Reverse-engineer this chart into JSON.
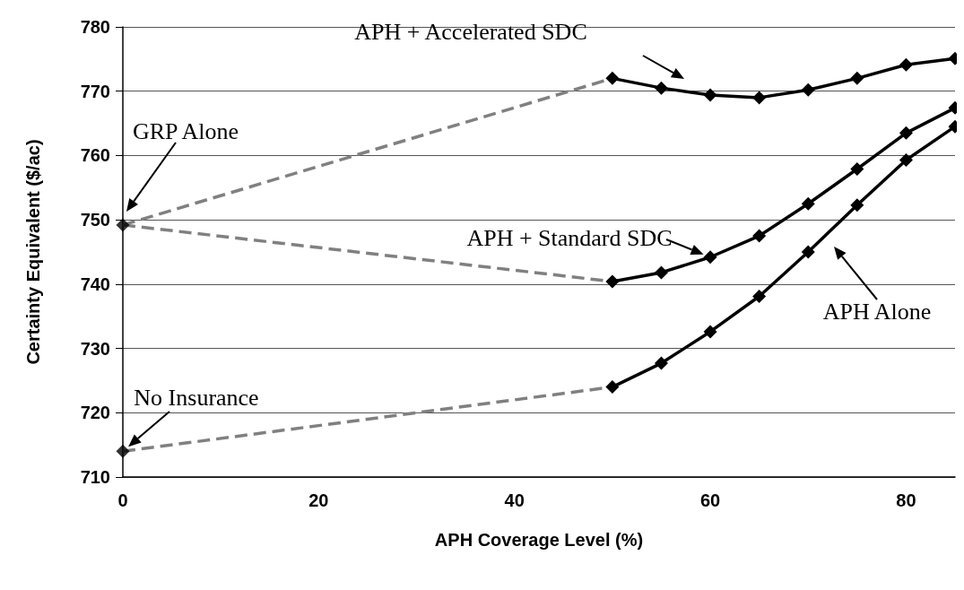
{
  "chart_data": {
    "type": "line",
    "xlabel": "APH Coverage Level (%)",
    "ylabel": "Certainty Equivalent ($/ac)",
    "xlim": [
      0,
      85
    ],
    "xticks": [
      0,
      20,
      40,
      60,
      80
    ],
    "ylim": [
      710,
      780
    ],
    "yticks": [
      710,
      720,
      730,
      740,
      750,
      760,
      770,
      780
    ],
    "grid": "y",
    "series": [
      {
        "color": "#808080",
        "line_style": "dashed",
        "marker": "none",
        "x": [
          0,
          50
        ],
        "values": [
          749.2,
          772.0
        ]
      },
      {
        "color": "#808080",
        "line_style": "dashed",
        "marker": "none",
        "x": [
          0,
          50
        ],
        "values": [
          749.2,
          740.4
        ]
      },
      {
        "color": "#808080",
        "line_style": "dashed",
        "marker": "none",
        "x": [
          0,
          50
        ],
        "values": [
          714.0,
          724.0
        ]
      },
      {
        "color": "#000000",
        "line_style": "solid",
        "marker": "diamond",
        "x": [
          50,
          55,
          60,
          65,
          70,
          75,
          80,
          85
        ],
        "values": [
          772.0,
          770.5,
          769.4,
          769.0,
          770.2,
          772.0,
          774.1,
          775.1
        ]
      },
      {
        "color": "#000000",
        "line_style": "solid",
        "marker": "diamond",
        "x": [
          50,
          55,
          60,
          65,
          70,
          75,
          80,
          85
        ],
        "values": [
          740.4,
          741.8,
          744.2,
          747.5,
          752.5,
          757.9,
          763.5,
          767.4
        ]
      },
      {
        "color": "#000000",
        "line_style": "solid",
        "marker": "diamond",
        "x": [
          50,
          55,
          60,
          65,
          70,
          75,
          80,
          85
        ],
        "values": [
          724.0,
          727.7,
          732.6,
          738.1,
          745.0,
          752.3,
          759.3,
          764.5
        ]
      },
      {
        "type": "scatter",
        "color": "#000000",
        "marker": "diamond",
        "x": [
          0,
          0
        ],
        "values": [
          749.2,
          714.0
        ]
      }
    ],
    "annotations": [
      "APH + Accelerated SDC",
      {
        "text": "APH + Standard SDC",
        "x": 60,
        "y": 744.2
      },
      "APH Alone",
      "GRP Alone",
      {
        "text": "No Insurance",
        "x": 0,
        "y": 714.0
      }
    ]
  }
}
